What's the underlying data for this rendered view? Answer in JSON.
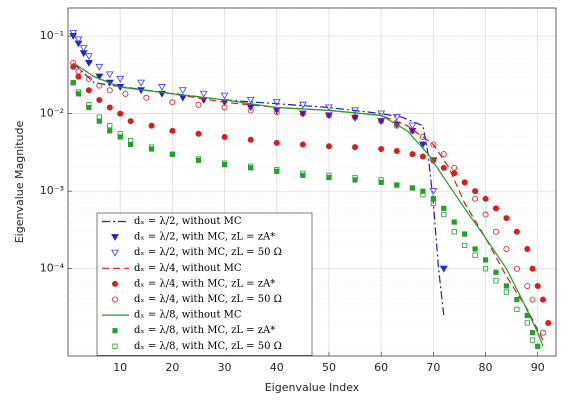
{
  "chart_data": {
    "type": "line",
    "xlabel": "Eigenvalue Index",
    "ylabel": "Eigenvalue Magnitude",
    "xlim": [
      0,
      93.5
    ],
    "ylim": [
      7.5e-06,
      0.23
    ],
    "ylog": true,
    "grid": true,
    "minor_grid": true,
    "legend": "lower left",
    "xticks": [
      10,
      20,
      30,
      40,
      50,
      60,
      70,
      80,
      90
    ],
    "yticks": [
      {
        "value": 0.0001,
        "label": "10⁻⁴"
      },
      {
        "value": 0.001,
        "label": "10⁻³"
      },
      {
        "value": 0.01,
        "label": "10⁻²"
      },
      {
        "value": 0.1,
        "label": "10⁻¹"
      }
    ],
    "series": [
      {
        "name": "dₓ = λ/2, without MC",
        "color": "#1f1fbf",
        "line": "dashdot",
        "marker": null,
        "filled": false,
        "x": [
          1,
          5,
          15,
          30,
          50,
          60,
          64,
          68,
          69,
          70,
          71,
          72
        ],
        "values": [
          0.045,
          0.025,
          0.02,
          0.015,
          0.012,
          0.01,
          0.009,
          0.007,
          0.003,
          0.0007,
          0.0001,
          2.5e-05
        ]
      },
      {
        "name": "dₓ = λ/2, with MC, zL = zA*",
        "color": "#1f1fe0",
        "line": null,
        "marker": "triangle-down",
        "filled": true,
        "x": [
          1,
          2,
          3,
          4,
          6,
          8,
          10,
          14,
          18,
          22,
          26,
          30,
          35,
          40,
          45,
          50,
          55,
          60,
          63,
          66,
          68,
          70,
          72
        ],
        "values": [
          0.1,
          0.08,
          0.06,
          0.045,
          0.03,
          0.025,
          0.022,
          0.02,
          0.018,
          0.016,
          0.015,
          0.014,
          0.012,
          0.011,
          0.01,
          0.0095,
          0.0088,
          0.008,
          0.0072,
          0.006,
          0.004,
          0.0025,
          0.0001
        ]
      },
      {
        "name": "dₓ = λ/2, with MC, zL = 50 Ω",
        "color": "#3a3aff",
        "line": null,
        "marker": "triangle-down",
        "filled": false,
        "x": [
          1,
          2,
          3,
          4,
          6,
          8,
          10,
          14,
          18,
          22,
          26,
          30,
          35,
          40,
          45,
          50,
          55,
          60,
          63,
          66,
          68,
          70,
          72
        ],
        "values": [
          0.11,
          0.09,
          0.07,
          0.055,
          0.04,
          0.032,
          0.028,
          0.025,
          0.022,
          0.02,
          0.018,
          0.017,
          0.015,
          0.014,
          0.013,
          0.012,
          0.011,
          0.01,
          0.009,
          0.007,
          0.004,
          0.001,
          0.0001
        ]
      },
      {
        "name": "dₓ = λ/4, without MC",
        "color": "#e31a1c",
        "line": "dashed",
        "marker": null,
        "filled": false,
        "x": [
          1,
          5,
          10,
          20,
          30,
          40,
          50,
          60,
          65,
          70,
          73,
          76,
          80,
          84,
          88,
          91
        ],
        "values": [
          0.045,
          0.03,
          0.022,
          0.018,
          0.014,
          0.012,
          0.011,
          0.0095,
          0.007,
          0.004,
          0.002,
          0.0007,
          0.00025,
          8e-05,
          3e-05,
          1.2e-05
        ]
      },
      {
        "name": "dₓ = λ/4, with MC, zL = zA*",
        "color": "#e31a1c",
        "line": null,
        "marker": "circle",
        "filled": true,
        "x": [
          1,
          2,
          4,
          6,
          8,
          10,
          12,
          16,
          20,
          25,
          30,
          35,
          40,
          45,
          50,
          55,
          60,
          63,
          66,
          68,
          70,
          72,
          74,
          76,
          78,
          80,
          82,
          84,
          86,
          88,
          89,
          90,
          91,
          92
        ],
        "values": [
          0.04,
          0.03,
          0.02,
          0.015,
          0.012,
          0.01,
          0.008,
          0.007,
          0.006,
          0.0055,
          0.005,
          0.0046,
          0.0042,
          0.004,
          0.0038,
          0.0037,
          0.0035,
          0.0033,
          0.003,
          0.0028,
          0.0025,
          0.002,
          0.0017,
          0.0013,
          0.001,
          0.0008,
          0.0006,
          0.00045,
          0.0003,
          0.00018,
          0.0001,
          6e-05,
          4e-05,
          2e-05
        ]
      },
      {
        "name": "dₓ = λ/4, with MC, zL = 50 Ω",
        "color": "#e31a1c",
        "line": null,
        "marker": "circle",
        "filled": false,
        "x": [
          1,
          2,
          4,
          6,
          8,
          11,
          15,
          20,
          25,
          30,
          35,
          40,
          45,
          50,
          55,
          60,
          63,
          66,
          68,
          70,
          72,
          74,
          76,
          78,
          80,
          82,
          84,
          86,
          88,
          89,
          91
        ],
        "values": [
          0.045,
          0.035,
          0.028,
          0.023,
          0.02,
          0.018,
          0.016,
          0.014,
          0.013,
          0.012,
          0.011,
          0.0105,
          0.01,
          0.0095,
          0.009,
          0.008,
          0.007,
          0.006,
          0.005,
          0.004,
          0.003,
          0.002,
          0.0013,
          0.0008,
          0.0005,
          0.0003,
          0.00018,
          0.0001,
          6e-05,
          4e-05,
          1.5e-05
        ]
      },
      {
        "name": "dₓ = λ/8, without MC",
        "color": "#22a02a",
        "line": "solid",
        "marker": null,
        "filled": false,
        "x": [
          1,
          5,
          10,
          20,
          30,
          40,
          50,
          60,
          65,
          69,
          72,
          76,
          80,
          84,
          87,
          90,
          91
        ],
        "values": [
          0.045,
          0.03,
          0.022,
          0.018,
          0.015,
          0.012,
          0.011,
          0.0095,
          0.006,
          0.003,
          0.0015,
          0.0006,
          0.00025,
          0.0001,
          4e-05,
          1.5e-05,
          1e-05
        ]
      },
      {
        "name": "dₓ = λ/8, with MC, zL = zA*",
        "color": "#22a02a",
        "line": null,
        "marker": "square",
        "filled": true,
        "x": [
          1,
          2,
          4,
          6,
          8,
          10,
          12,
          16,
          20,
          25,
          30,
          35,
          40,
          45,
          50,
          55,
          60,
          63,
          66,
          68,
          70,
          72,
          74,
          76,
          78,
          80,
          82,
          84,
          86,
          88,
          89,
          90
        ],
        "values": [
          0.025,
          0.018,
          0.012,
          0.008,
          0.006,
          0.005,
          0.004,
          0.0035,
          0.003,
          0.0025,
          0.0022,
          0.002,
          0.0018,
          0.0016,
          0.0015,
          0.0014,
          0.0013,
          0.0012,
          0.0011,
          0.001,
          0.0008,
          0.0006,
          0.0004,
          0.00028,
          0.00018,
          0.00013,
          9e-05,
          6e-05,
          4e-05,
          2.5e-05,
          1.5e-05,
          1e-05
        ]
      },
      {
        "name": "dₓ = λ/8, with MC, zL = 50 Ω",
        "color": "#22a02a",
        "line": null,
        "marker": "square",
        "filled": false,
        "x": [
          1,
          2,
          4,
          6,
          8,
          10,
          12,
          16,
          20,
          25,
          30,
          35,
          40,
          45,
          50,
          55,
          60,
          63,
          66,
          68,
          70,
          72,
          74,
          76,
          78,
          80,
          82,
          84,
          86,
          88,
          89
        ],
        "values": [
          0.025,
          0.019,
          0.013,
          0.009,
          0.007,
          0.0055,
          0.0045,
          0.0037,
          0.003,
          0.0026,
          0.0023,
          0.0021,
          0.0019,
          0.0017,
          0.0016,
          0.0015,
          0.0014,
          0.0012,
          0.0011,
          0.0009,
          0.0007,
          0.0005,
          0.0003,
          0.0002,
          0.00015,
          0.0001,
          7e-05,
          5e-05,
          3e-05,
          2e-05,
          1.2e-05
        ]
      }
    ]
  }
}
